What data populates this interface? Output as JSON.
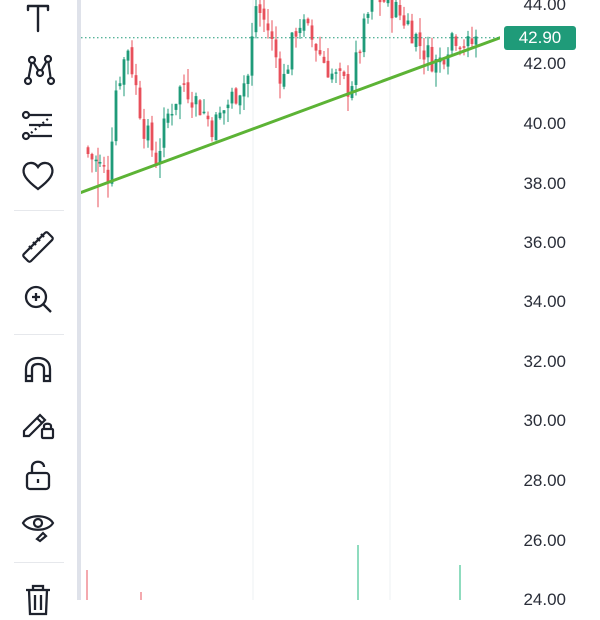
{
  "tools": [
    {
      "name": "text-tool-icon"
    },
    {
      "name": "pattern-tool-icon"
    },
    {
      "name": "fib-tool-icon"
    },
    {
      "name": "favorites-icon"
    },
    {
      "name": "ruler-icon"
    },
    {
      "name": "zoom-in-icon"
    },
    {
      "name": "magnet-icon"
    },
    {
      "name": "lock-drawings-icon"
    },
    {
      "name": "unlock-icon"
    },
    {
      "name": "hide-drawings-icon"
    },
    {
      "name": "trash-icon"
    }
  ],
  "colors": {
    "up": "#1f9b79",
    "down": "#e8505b",
    "trendline": "#5cb335",
    "accent": "#1f9b79"
  },
  "price_axis": {
    "labels": [
      "44.00",
      "42.00",
      "40.00",
      "38.00",
      "36.00",
      "34.00",
      "32.00",
      "30.00",
      "28.00",
      "26.00",
      "24.00"
    ],
    "current_price": "42.90"
  },
  "chart_data": {
    "type": "candlestick",
    "y_ticks": [
      44,
      42,
      40,
      38,
      36,
      34,
      32,
      30,
      28,
      26,
      24
    ],
    "current_price": 42.9,
    "support_trendline": {
      "start_price": 37.7,
      "end_price": 42.9
    }
  }
}
